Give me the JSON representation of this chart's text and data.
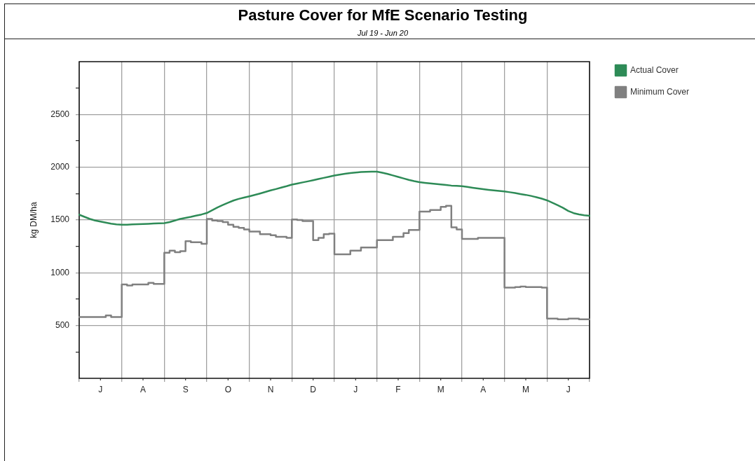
{
  "chart_data": {
    "type": "line",
    "title": "Pasture Cover for MfE Scenario Testing",
    "subtitle": "Jul 19 - Jun 20",
    "ylabel": "kg DM/ha",
    "categories": [
      null,
      null,
      null,
      null,
      "J",
      null,
      null,
      null,
      null,
      null,
      null,
      null,
      "A",
      null,
      null,
      null,
      null,
      null,
      null,
      null,
      "S",
      null,
      null,
      null,
      null,
      null,
      null,
      null,
      "O",
      null,
      null,
      null,
      null,
      null,
      null,
      null,
      "N",
      null,
      null,
      null,
      null,
      null,
      null,
      null,
      "D",
      null,
      null,
      null,
      null,
      null,
      null,
      null,
      "J",
      null,
      null,
      null,
      null,
      null,
      null,
      null,
      "F",
      null,
      null,
      null,
      null,
      null,
      null,
      null,
      "M",
      null,
      null,
      null,
      null,
      null,
      null,
      null,
      "A",
      null,
      null,
      null,
      null,
      null,
      null,
      null,
      "M",
      null,
      null,
      null,
      null,
      null,
      null,
      null,
      "J",
      null,
      null,
      null,
      null
    ],
    "ylim": [
      0,
      3000
    ],
    "yticks": [
      {
        "value": 250,
        "label": null
      },
      500,
      {
        "value": 750,
        "label": null
      },
      1000,
      {
        "value": 1250,
        "label": null
      },
      1500,
      {
        "value": 1750,
        "label": null
      },
      2000,
      {
        "value": 2250,
        "label": null
      },
      2500,
      {
        "value": 2750,
        "label": null
      }
    ],
    "grid": true,
    "legend": "top right",
    "series": [
      {
        "name": "Actual Cover",
        "type": "line",
        "color": "#2e8b57",
        "values": [
          1550,
          1530,
          1510,
          1495,
          1485,
          1475,
          1465,
          1458,
          1455,
          1455,
          1458,
          1460,
          1462,
          1464,
          1466,
          1468,
          1470,
          1480,
          1495,
          1510,
          1520,
          1530,
          1542,
          1552,
          1566,
          1592,
          1618,
          1642,
          1664,
          1684,
          1700,
          1712,
          1724,
          1737,
          1751,
          1765,
          1780,
          1793,
          1807,
          1820,
          1835,
          1845,
          1856,
          1866,
          1877,
          1888,
          1899,
          1910,
          1922,
          1930,
          1938,
          1945,
          1950,
          1955,
          1957,
          1958,
          1958,
          1948,
          1936,
          1922,
          1908,
          1894,
          1880,
          1868,
          1858,
          1852,
          1847,
          1842,
          1837,
          1832,
          1826,
          1823,
          1820,
          1813,
          1806,
          1799,
          1792,
          1786,
          1780,
          1775,
          1771,
          1763,
          1755,
          1746,
          1738,
          1728,
          1716,
          1702,
          1686,
          1664,
          1640,
          1615,
          1585,
          1565,
          1553,
          1545,
          1540
        ]
      },
      {
        "name": "Minimum Cover",
        "type": "step",
        "color": "#808080",
        "values": [
          580,
          580,
          580,
          580,
          580,
          595,
          580,
          580,
          890,
          880,
          890,
          890,
          890,
          905,
          895,
          895,
          1190,
          1210,
          1195,
          1205,
          1300,
          1290,
          1290,
          1275,
          1510,
          1495,
          1490,
          1480,
          1455,
          1435,
          1425,
          1410,
          1390,
          1390,
          1365,
          1365,
          1355,
          1340,
          1340,
          1330,
          1505,
          1500,
          1490,
          1490,
          1310,
          1330,
          1365,
          1370,
          1175,
          1175,
          1175,
          1210,
          1210,
          1240,
          1240,
          1240,
          1310,
          1310,
          1310,
          1340,
          1340,
          1375,
          1405,
          1405,
          1580,
          1580,
          1595,
          1595,
          1625,
          1635,
          1430,
          1410,
          1320,
          1320,
          1320,
          1330,
          1330,
          1330,
          1330,
          1330,
          860,
          860,
          865,
          870,
          865,
          865,
          865,
          860,
          565,
          565,
          560,
          560,
          565,
          565,
          560,
          560,
          560
        ]
      }
    ]
  }
}
